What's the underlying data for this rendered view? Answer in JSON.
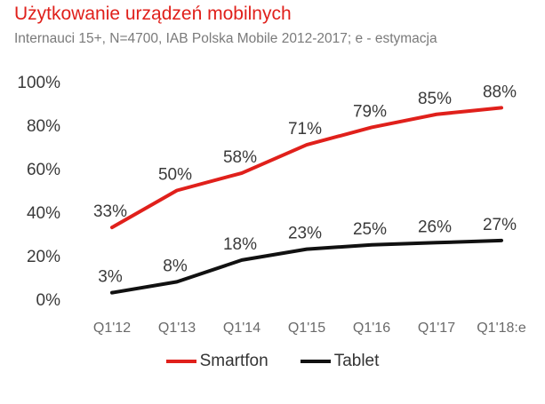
{
  "chart_data": {
    "type": "line",
    "title": "Użytkowanie urządzeń mobilnych",
    "subtitle": "Internauci 15+, N=4700, IAB Polska Mobile 2012-2017; e - estymacja",
    "categories": [
      "Q1'12",
      "Q1'13",
      "Q1'14",
      "Q1'15",
      "Q1'16",
      "Q1'17",
      "Q1'18:e"
    ],
    "yticks": [
      "0%",
      "20%",
      "40%",
      "60%",
      "80%",
      "100%"
    ],
    "ylim": [
      0,
      100
    ],
    "xlabel": "",
    "ylabel": "",
    "legend_position": "bottom",
    "series": [
      {
        "name": "Smartfon",
        "color": "#e0201b",
        "values": [
          33,
          50,
          58,
          71,
          79,
          85,
          88
        ],
        "labels": [
          "33%",
          "50%",
          "58%",
          "71%",
          "79%",
          "85%",
          "88%"
        ]
      },
      {
        "name": "Tablet",
        "color": "#111111",
        "values": [
          3,
          8,
          18,
          23,
          25,
          26,
          27
        ],
        "labels": [
          "3%",
          "8%",
          "18%",
          "23%",
          "25%",
          "26%",
          "27%"
        ]
      }
    ]
  }
}
